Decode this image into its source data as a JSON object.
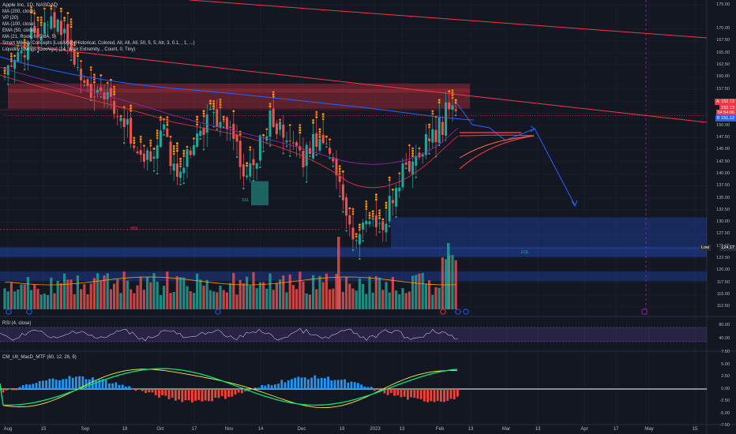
{
  "legend": {
    "title": "Apple Inc, 1D, NASDAQ",
    "lines": [
      "MA (200, close)",
      "VP (20)",
      "MA (100, close)",
      "EMA (50, close)",
      "MA (21, Rook, 0, SMA, 5)",
      "Smart Money Concepts [LuxAlgo] (Historical, Colored, All, All, All, 50, 5, 5, Atr, 3, 0.1, , 1, ...)",
      "Liquidity Swings [LuxAlgo] (14, Wick Extremity, , Count, 0, Tiny)"
    ]
  },
  "rsi_legend": "RSI (4, close)",
  "macd_legend": "CM_Ult_MacD_MTF (60, 12, 26, 9)",
  "price_axis": [
    "175.00",
    "170.00",
    "167.50",
    "165.00",
    "162.50",
    "160.00",
    "157.50",
    "155.00",
    "152.50",
    "150.00",
    "147.50",
    "145.00",
    "142.50",
    "140.00",
    "137.50",
    "135.00",
    "132.50",
    "130.00",
    "127.50",
    "125.00",
    "122.50",
    "120.00",
    "117.50",
    "115.00",
    "112.50"
  ],
  "rsi_axis": [
    "80.00",
    "40.00"
  ],
  "macd_axis": [
    "7.50",
    "5.00",
    "2.50",
    "0.00",
    "-2.50",
    "-5.00",
    "-7.50"
  ],
  "price_tags": {
    "ask": {
      "label": "Ask",
      "value": "152.13",
      "color": "#f23645"
    },
    "last": {
      "label": "",
      "value": "152.13",
      "color": "#f23645"
    },
    "countdown": {
      "value": "04:54:06",
      "color": "#f23645"
    },
    "bid": {
      "label": "Bid",
      "value": "151.12",
      "color": "#2962ff"
    },
    "low": {
      "label": "Low",
      "value": "124.17",
      "color": "#2a2e39"
    }
  },
  "dates": [
    "Aug",
    "15",
    "Sep",
    "19",
    "Oct",
    "17",
    "Nov",
    "14",
    "Dec",
    "19",
    "2023",
    "13",
    "Feb",
    "13",
    "Mar",
    "13",
    "Apr",
    "17",
    "May",
    "15"
  ],
  "notes": {
    "bsl": "BSL",
    "ssl": "SSL",
    "fvg": "FVG",
    "eql": "EQL",
    "mss": "MSS"
  },
  "colors": {
    "background": "#131722",
    "up": "#26a69a",
    "down": "#ef5350",
    "trendline": "#f23645",
    "supply_zone": "#f2364566",
    "demand_zone": "#2962ff55",
    "projection": "#2962ff",
    "rsi_band": "#7e57c2",
    "macd_up": "#00e676",
    "macd_down": "#ff1744"
  }
}
